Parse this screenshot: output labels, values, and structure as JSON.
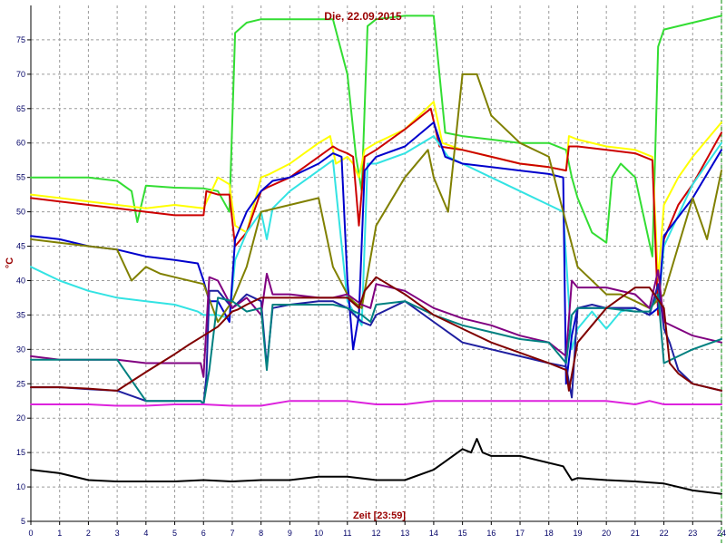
{
  "chart_data": {
    "type": "line",
    "title": "Die, 22.09.2015",
    "xlabel": "Zeit [23:59]",
    "ylabel": "°C",
    "xlim": [
      0,
      24
    ],
    "ylim": [
      5,
      80
    ],
    "x_ticks": [
      0,
      1,
      2,
      3,
      4,
      5,
      6,
      7,
      8,
      9,
      10,
      11,
      12,
      13,
      14,
      15,
      16,
      17,
      18,
      19,
      20,
      21,
      22,
      23,
      24
    ],
    "y_ticks": [
      5,
      10,
      15,
      20,
      25,
      30,
      35,
      40,
      45,
      50,
      55,
      60,
      65,
      70,
      75
    ],
    "grid": true,
    "legend": "none",
    "series": [
      {
        "color": "#33dd33",
        "x": [
          0,
          1,
          2,
          3,
          3.5,
          3.7,
          4,
          5,
          6,
          6.5,
          6.9,
          7.1,
          7.5,
          8,
          9,
          10,
          10.5,
          11,
          11.3,
          11.5,
          11.7,
          12,
          13,
          14,
          14.4,
          15,
          16,
          17,
          18,
          18.6,
          18.8,
          19,
          19.5,
          20,
          20.2,
          20.5,
          21,
          21.6,
          21.8,
          22,
          23,
          24
        ],
        "y": [
          55,
          55,
          55,
          54.5,
          53,
          48.5,
          53.8,
          53.5,
          53.4,
          53,
          50,
          76,
          77.5,
          78,
          78,
          78,
          78,
          70,
          58,
          53,
          77,
          78,
          78.5,
          78.5,
          61.5,
          61,
          60.5,
          60,
          60,
          59,
          55,
          52,
          47,
          45.5,
          55,
          57,
          55,
          43.5,
          74,
          76.5,
          77.5,
          78.5
        ]
      },
      {
        "color": "#ffff00",
        "x": [
          0,
          1,
          2,
          3,
          4,
          5,
          6,
          6.5,
          6.9,
          7.1,
          7.5,
          8,
          8.3,
          9,
          10,
          10.4,
          10.6,
          11,
          11.2,
          11.4,
          11.6,
          12,
          13,
          14,
          14.3,
          15,
          16,
          17,
          18,
          18.6,
          18.7,
          19,
          20,
          21,
          21.6,
          21.8,
          22,
          22.5,
          23,
          24
        ],
        "y": [
          52.5,
          52,
          51.5,
          51,
          50.5,
          51,
          50.5,
          55,
          54,
          48,
          47,
          55,
          55.5,
          57,
          60,
          61,
          57,
          58,
          57,
          55,
          59,
          60,
          62,
          66,
          60,
          59,
          58,
          57,
          56.5,
          56,
          61,
          60.5,
          59.5,
          59,
          58,
          40,
          51,
          55,
          58,
          63
        ]
      },
      {
        "color": "#cc0000",
        "x": [
          0,
          1,
          2,
          3,
          4,
          5,
          6,
          6.1,
          6.5,
          6.9,
          7.1,
          7.5,
          8,
          8.2,
          9,
          10,
          10.5,
          10.7,
          11,
          11.2,
          11.4,
          11.6,
          12,
          13,
          13.9,
          14.2,
          15,
          16,
          17,
          18,
          18.6,
          18.7,
          19,
          20,
          21,
          21.6,
          21.8,
          22,
          22.5,
          23,
          24
        ],
        "y": [
          52,
          51.5,
          51,
          50.5,
          50,
          49.5,
          49.5,
          53,
          52.5,
          52.5,
          45,
          47,
          53,
          53.5,
          55,
          58,
          59.5,
          59,
          58.5,
          58,
          48,
          58,
          59,
          62,
          65,
          59.5,
          59,
          58,
          57,
          56.5,
          56,
          59.5,
          59.5,
          59,
          58.5,
          57.5,
          35,
          46,
          51,
          54,
          61.5
        ]
      },
      {
        "color": "#33e3e3",
        "x": [
          0,
          1,
          2,
          3,
          4,
          5,
          5.8,
          6,
          6.5,
          6.9,
          7.1,
          7.5,
          8,
          8.2,
          8.4,
          9,
          10,
          10.5,
          11,
          11.5,
          11.7,
          12,
          13,
          14,
          14.5,
          15,
          16,
          17,
          18,
          18.5,
          18.8,
          19,
          19.5,
          20,
          20.5,
          21,
          21.5,
          21.8,
          22,
          23,
          24
        ],
        "y": [
          42,
          40,
          38.5,
          37.5,
          37,
          36.5,
          35.5,
          35,
          35,
          34.5,
          43,
          47,
          50,
          46,
          50.5,
          53,
          56,
          57.5,
          37,
          33.5,
          57,
          57,
          58.5,
          61,
          58,
          57,
          55,
          53,
          51,
          50,
          30,
          33,
          35.5,
          33,
          35.5,
          36,
          35,
          36,
          45,
          54,
          60
        ]
      },
      {
        "color": "#0000cc",
        "x": [
          0,
          1,
          2,
          3,
          4,
          5,
          5.8,
          6,
          6.2,
          6.5,
          6.9,
          7.1,
          7.5,
          8,
          8.4,
          9,
          10,
          10.5,
          10.8,
          11,
          11.2,
          11.4,
          11.6,
          12,
          13,
          14,
          14.4,
          15,
          16,
          17,
          18,
          18.5,
          18.6,
          18.8,
          19,
          20,
          21,
          21.5,
          21.8,
          22,
          23,
          24
        ],
        "y": [
          46.5,
          46,
          45,
          44.5,
          43.5,
          43,
          42.5,
          40,
          37,
          37,
          34,
          46,
          50,
          53,
          54.5,
          55,
          57,
          58.5,
          58,
          40,
          30,
          35,
          56,
          58,
          59.5,
          63,
          58,
          57,
          56.5,
          56,
          55.5,
          55,
          25,
          32,
          36,
          36,
          36,
          35,
          36,
          46.5,
          52,
          59
        ]
      },
      {
        "color": "#808000",
        "x": [
          0,
          1,
          2,
          3,
          3.5,
          4,
          4.5,
          5,
          6,
          6.5,
          7,
          7.5,
          8,
          9,
          10,
          10.5,
          11,
          11.2,
          11.5,
          12,
          13,
          13.8,
          14,
          14.5,
          15,
          15.5,
          16,
          17,
          18,
          18.5,
          19,
          20,
          20.5,
          21,
          21.5,
          22,
          22.5,
          23,
          23.5,
          24
        ],
        "y": [
          46,
          45.5,
          45,
          44.5,
          40,
          42,
          41,
          40.5,
          39.5,
          34,
          37,
          42,
          50,
          51,
          52,
          42,
          38,
          37,
          36,
          48,
          55,
          59,
          55,
          50,
          70,
          70,
          64,
          60,
          58,
          50,
          42,
          38,
          38,
          37,
          36,
          38,
          45,
          52,
          46,
          56
        ]
      },
      {
        "color": "#1f1fa0",
        "x": [
          0,
          1,
          2,
          3,
          4,
          5,
          5.9,
          6.0,
          6.1,
          6.2,
          6.5,
          7,
          7.5,
          8,
          8.2,
          8.4,
          9,
          10,
          10.5,
          11,
          11.5,
          11.8,
          12,
          13,
          14,
          15,
          16,
          17,
          18,
          18.6,
          18.8,
          19,
          19.5,
          20,
          20.5,
          21,
          21.5,
          21.8,
          22,
          22.2,
          22.5,
          23,
          24
        ],
        "y": [
          24.5,
          24.5,
          24.2,
          24,
          22.5,
          22.5,
          22.5,
          22,
          26,
          38.5,
          38.5,
          36,
          38,
          37,
          27.5,
          36,
          36.5,
          37,
          37,
          36,
          34,
          33.5,
          35,
          37,
          34,
          31,
          30,
          29,
          28,
          27.5,
          23,
          36,
          36.5,
          36,
          36,
          36,
          35,
          39.5,
          33,
          31,
          27,
          25,
          24
        ]
      },
      {
        "color": "#800080",
        "x": [
          0,
          1,
          2,
          3,
          4,
          5,
          5.9,
          6.0,
          6.2,
          6.5,
          7,
          7.5,
          8,
          8.2,
          8.4,
          9,
          10,
          10.5,
          11,
          11.5,
          11.8,
          12,
          13,
          14,
          15,
          16,
          17,
          18,
          18.6,
          18.8,
          19,
          20,
          21,
          21.5,
          21.8,
          22,
          22.5,
          23,
          24
        ],
        "y": [
          29,
          28.5,
          28.5,
          28.5,
          28,
          28,
          28,
          26,
          40.5,
          40,
          36,
          37.5,
          35,
          41,
          38,
          38,
          37.5,
          37.5,
          38,
          36.5,
          36,
          39.5,
          38.5,
          36,
          34.5,
          33.5,
          32,
          31,
          29,
          40,
          39,
          39,
          38,
          36,
          41.5,
          34,
          33,
          32,
          31
        ]
      },
      {
        "color": "#008080",
        "x": [
          0,
          1,
          2,
          3,
          4,
          5,
          5.9,
          6.0,
          6.2,
          6.5,
          7,
          7.5,
          8,
          8.2,
          8.4,
          9,
          10,
          10.5,
          11,
          11.5,
          11.8,
          12,
          13,
          14,
          15,
          16,
          17,
          18,
          18.6,
          18.8,
          19,
          20,
          21,
          21.5,
          21.8,
          22,
          22.5,
          23,
          24
        ],
        "y": [
          28.5,
          28.5,
          28.5,
          28.5,
          22.5,
          22.5,
          22.5,
          22,
          27,
          37.5,
          37,
          35.5,
          36,
          27,
          36.5,
          36.5,
          36.5,
          36.5,
          36,
          35,
          34,
          36.5,
          37,
          35,
          33.5,
          32.5,
          31.5,
          31,
          28,
          35,
          36,
          36,
          35.5,
          35.5,
          38,
          28,
          29,
          30,
          31.5
        ]
      },
      {
        "color": "#800000",
        "x": [
          0,
          1,
          2,
          3,
          4,
          5,
          5.5,
          6,
          6.5,
          7,
          7.2,
          7.5,
          8,
          9,
          10,
          11,
          11.4,
          11.6,
          12,
          13,
          14,
          15,
          16,
          17,
          18,
          18.6,
          18.7,
          19,
          20,
          21,
          21.5,
          22,
          22.2,
          22.5,
          23,
          24
        ],
        "y": [
          24.5,
          24.5,
          24.3,
          24,
          26.7,
          29.3,
          30.7,
          32,
          33.3,
          35.5,
          35.8,
          36.5,
          37.5,
          37.5,
          37.5,
          37.5,
          36,
          38.5,
          40.5,
          38,
          35,
          33,
          31,
          29.5,
          28,
          27,
          24,
          31,
          36,
          39,
          39,
          36,
          28,
          26.5,
          25,
          24
        ]
      },
      {
        "color": "#dd22dd",
        "x": [
          0,
          1,
          2,
          3,
          4,
          5,
          6,
          7,
          8,
          9,
          10,
          11,
          12,
          13,
          14,
          15,
          16,
          17,
          18,
          19,
          20,
          21,
          21.5,
          22,
          23,
          24
        ],
        "y": [
          22,
          22,
          22,
          21.8,
          21.8,
          22,
          22,
          21.8,
          21.8,
          22.5,
          22.5,
          22.5,
          22,
          22,
          22.5,
          22.5,
          22.5,
          22.5,
          22.5,
          22.5,
          22.5,
          22,
          22.5,
          22,
          22,
          22
        ]
      },
      {
        "color": "#000000",
        "x": [
          0,
          1,
          2,
          3,
          4,
          5,
          6,
          7,
          8,
          9,
          10,
          11,
          12,
          13,
          14,
          14.5,
          15,
          15.3,
          15.5,
          15.7,
          16,
          17,
          18,
          18.5,
          18.8,
          19,
          20,
          21,
          22,
          23,
          24
        ],
        "y": [
          12.5,
          12,
          11,
          10.8,
          10.8,
          10.8,
          11,
          10.8,
          11,
          11,
          11.5,
          11.5,
          11,
          11,
          12.5,
          14,
          15.5,
          15,
          17,
          15,
          14.5,
          14.5,
          13.5,
          13,
          11,
          11.3,
          11,
          10.8,
          10.5,
          9.5,
          9
        ]
      }
    ]
  }
}
